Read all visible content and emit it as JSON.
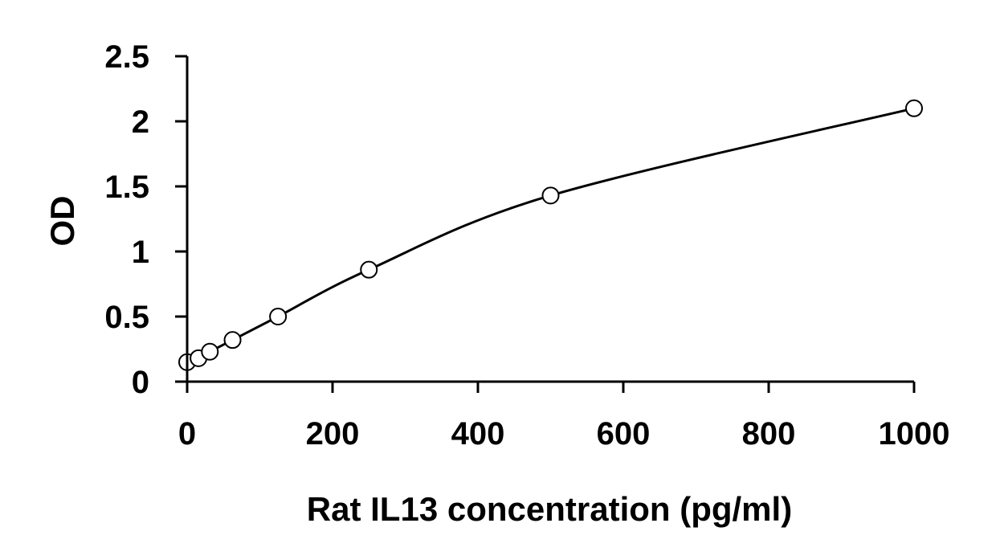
{
  "chart_data": {
    "type": "scatter",
    "title": "",
    "xlabel": "Rat IL13 concentration (pg/ml)",
    "ylabel": "OD",
    "xlim": [
      0,
      1000
    ],
    "ylim": [
      0,
      2.5
    ],
    "xticks": [
      0,
      200,
      400,
      600,
      800,
      1000
    ],
    "yticks": [
      0,
      0.5,
      1,
      1.5,
      2,
      2.5
    ],
    "xtick_labels": [
      "0",
      "200",
      "400",
      "600",
      "800",
      "1000"
    ],
    "ytick_labels": [
      "0",
      "0.5",
      "1",
      "1.5",
      "2",
      "2.5"
    ],
    "grid": false,
    "legend": "none",
    "series": [
      {
        "x": [
          0,
          15.6,
          31.25,
          62.5,
          125,
          250,
          500,
          1000
        ],
        "y": [
          0.15,
          0.18,
          0.23,
          0.32,
          0.5,
          0.86,
          1.43,
          2.1
        ],
        "marker": "open-circle",
        "trendline": "smooth-fit"
      }
    ]
  }
}
